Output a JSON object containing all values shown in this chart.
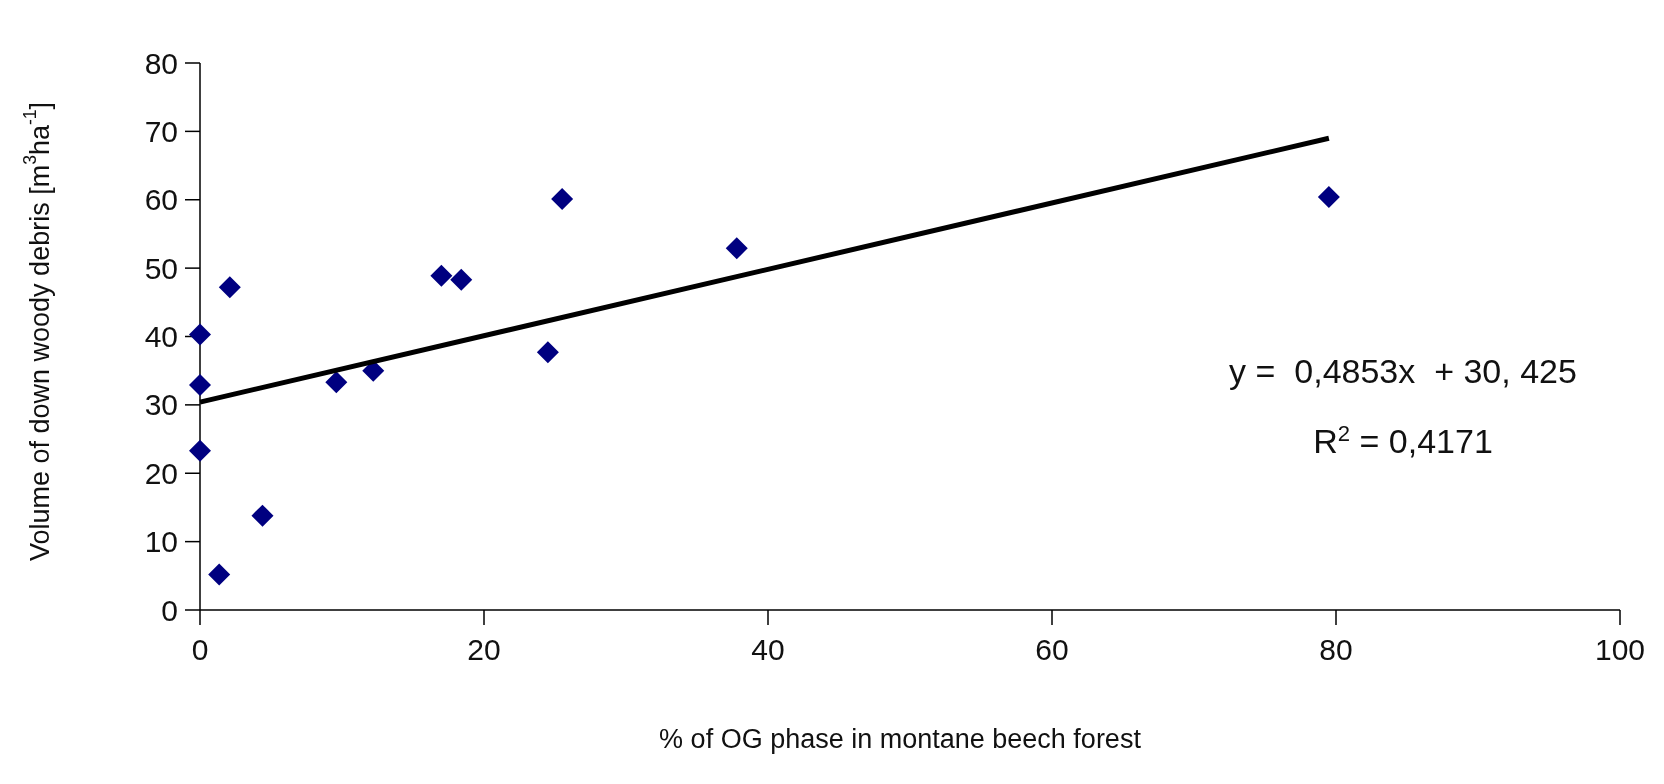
{
  "chart_data": {
    "type": "scatter",
    "xlabel": "% of OG phase in montane beech forest",
    "ylabel": "Volume of down woody debris [m$^{3}$ha$^{-1}$]",
    "xlim": [
      0,
      100
    ],
    "ylim": [
      0,
      80
    ],
    "xticks": [
      0,
      20,
      40,
      60,
      80,
      100
    ],
    "yticks": [
      0,
      10,
      20,
      30,
      40,
      50,
      60,
      70,
      80
    ],
    "grid": false,
    "series": [
      {
        "color": "#000080",
        "marker": "diamond",
        "x": [
          0,
          0,
          0,
          1.35,
          2.1,
          4.4,
          9.6,
          12.2,
          17.0,
          18.4,
          24.5,
          25.5,
          37.8,
          79.5
        ],
        "values": [
          40.3,
          32.9,
          23.3,
          5.2,
          47.2,
          13.8,
          33.3,
          35.0,
          48.9,
          48.3,
          37.7,
          60.1,
          52.9,
          60.4
        ]
      },
      {
        "type": "line",
        "color": "#000000",
        "marker": "none",
        "line_style": "solid",
        "x": [
          0,
          79.5
        ],
        "values": [
          30.4,
          69.0
        ]
      }
    ],
    "annotations": [
      "y =  0,4853x  + 30, 425",
      "R$^{2}$ = 0,4171"
    ]
  }
}
